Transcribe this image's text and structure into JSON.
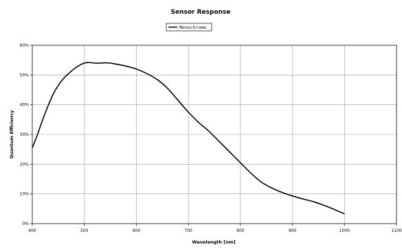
{
  "chart_data": {
    "type": "line",
    "title": "Sensor Response",
    "xlabel": "Wavelength [nm]",
    "ylabel": "Quantum Efficiency",
    "xlim": [
      400,
      1100
    ],
    "ylim": [
      0,
      60
    ],
    "x_ticks": [
      400,
      500,
      600,
      700,
      800,
      900,
      1000,
      1100
    ],
    "y_ticks": [
      0,
      10,
      20,
      30,
      40,
      50,
      60
    ],
    "x_tick_labels": [
      "400",
      "500",
      "600",
      "700",
      "800",
      "900",
      "1000",
      "1100"
    ],
    "y_tick_labels": [
      "0%",
      "10%",
      "20%",
      "30%",
      "40%",
      "50%",
      "60%"
    ],
    "grid": true,
    "legend_position": "top-center",
    "series": [
      {
        "name": "Monochrome",
        "color": "#000000",
        "x": [
          400,
          410,
          420,
          430,
          440,
          450,
          460,
          470,
          480,
          490,
          500,
          510,
          520,
          530,
          540,
          550,
          560,
          580,
          600,
          620,
          640,
          660,
          680,
          700,
          720,
          740,
          760,
          780,
          800,
          820,
          840,
          860,
          880,
          900,
          920,
          940,
          960,
          980,
          1000
        ],
        "y": [
          25.5,
          30,
          35,
          39.5,
          43.5,
          46.5,
          48.8,
          50.5,
          52,
          53.2,
          54,
          54.2,
          54,
          54,
          54.1,
          54,
          53.7,
          53,
          52,
          50.5,
          48.5,
          45.5,
          41.5,
          37.5,
          34,
          31,
          27.5,
          24,
          20.5,
          17,
          14,
          12,
          10.5,
          9.3,
          8.3,
          7.4,
          6.2,
          4.8,
          3.3
        ]
      }
    ]
  }
}
